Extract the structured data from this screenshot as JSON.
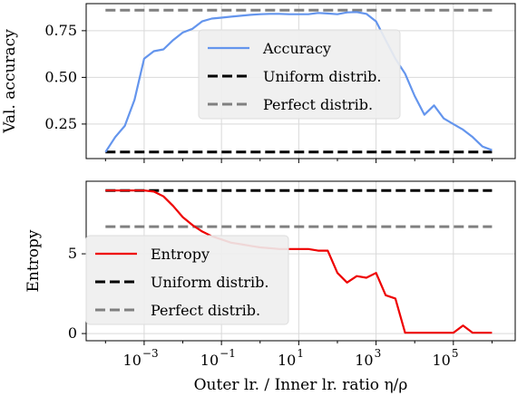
{
  "chart_data": [
    {
      "type": "line",
      "ylabel": "Val. accuracy",
      "xlabel": "",
      "xscale": "log",
      "xlim_log10": [
        -4.5,
        6.6
      ],
      "ylim": [
        0.065,
        0.895
      ],
      "yticks": [
        0.25,
        0.5,
        0.75
      ],
      "ytick_labels": [
        "0.25",
        "0.50",
        "0.75"
      ],
      "grid": true,
      "legend_position": "center",
      "series": [
        {
          "name": "Accuracy",
          "color": "#6495ED",
          "style": "solid",
          "x_log10": [
            -4.0,
            -3.75,
            -3.5,
            -3.25,
            -3.0,
            -2.75,
            -2.5,
            -2.25,
            -2.0,
            -1.75,
            -1.5,
            -1.25,
            -1.0,
            -0.75,
            -0.5,
            -0.25,
            0.0,
            0.25,
            0.5,
            0.75,
            1.0,
            1.25,
            1.5,
            1.75,
            2.0,
            2.25,
            2.5,
            2.75,
            3.0,
            3.25,
            3.5,
            3.75,
            4.0,
            4.25,
            4.5,
            4.75,
            5.0,
            5.25,
            5.5,
            5.75,
            6.0
          ],
          "y": [
            0.1,
            0.18,
            0.24,
            0.38,
            0.6,
            0.64,
            0.65,
            0.7,
            0.74,
            0.76,
            0.8,
            0.815,
            0.82,
            0.825,
            0.83,
            0.835,
            0.838,
            0.84,
            0.84,
            0.838,
            0.838,
            0.838,
            0.845,
            0.842,
            0.838,
            0.848,
            0.85,
            0.84,
            0.8,
            0.7,
            0.6,
            0.52,
            0.4,
            0.3,
            0.35,
            0.28,
            0.25,
            0.22,
            0.18,
            0.13,
            0.11
          ]
        },
        {
          "name": "Uniform distrib.",
          "color": "#000000",
          "style": "dashed",
          "value": 0.1
        },
        {
          "name": "Perfect distrib.",
          "color": "#808080",
          "style": "dashed",
          "value": 0.86
        }
      ]
    },
    {
      "type": "line",
      "ylabel": "Entropy",
      "xlabel": "Outer lr. / Inner lr. ratio η/ρ",
      "xscale": "log",
      "xlim_log10": [
        -4.5,
        6.6
      ],
      "ylim": [
        -0.45,
        9.55
      ],
      "yticks": [
        0,
        5
      ],
      "ytick_labels": [
        "0",
        "5"
      ],
      "xticks_log10": [
        -3,
        -1,
        1,
        3,
        5
      ],
      "xtick_labels": [
        [
          "10",
          "−3"
        ],
        [
          "10",
          "−1"
        ],
        [
          "10",
          "1"
        ],
        [
          "10",
          "3"
        ],
        [
          "10",
          "5"
        ]
      ],
      "grid": true,
      "legend_position": "lower-left",
      "series": [
        {
          "name": "Entropy",
          "color": "#EE0000",
          "style": "solid",
          "x_log10": [
            -4.0,
            -3.75,
            -3.5,
            -3.25,
            -3.0,
            -2.75,
            -2.5,
            -2.25,
            -2.0,
            -1.75,
            -1.5,
            -1.25,
            -1.0,
            -0.75,
            -0.5,
            -0.25,
            0.0,
            0.25,
            0.5,
            0.75,
            1.0,
            1.25,
            1.5,
            1.75,
            2.0,
            2.25,
            2.5,
            2.75,
            3.0,
            3.25,
            3.5,
            3.75,
            4.0,
            4.25,
            4.5,
            4.75,
            5.0,
            5.25,
            5.5,
            5.75,
            6.0
          ],
          "y": [
            8.97,
            8.97,
            8.97,
            8.97,
            8.97,
            8.9,
            8.6,
            8.0,
            7.3,
            6.8,
            6.4,
            6.1,
            5.9,
            5.7,
            5.6,
            5.5,
            5.4,
            5.35,
            5.3,
            5.3,
            5.3,
            5.3,
            5.2,
            5.2,
            3.8,
            3.2,
            3.6,
            3.5,
            3.8,
            2.4,
            2.2,
            0.05,
            0.05,
            0.05,
            0.05,
            0.05,
            0.05,
            0.5,
            0.05,
            0.05,
            0.05
          ]
        },
        {
          "name": "Uniform distrib.",
          "color": "#000000",
          "style": "dashed",
          "value": 8.97
        },
        {
          "name": "Perfect distrib.",
          "color": "#808080",
          "style": "dashed",
          "value": 6.7
        }
      ]
    }
  ]
}
